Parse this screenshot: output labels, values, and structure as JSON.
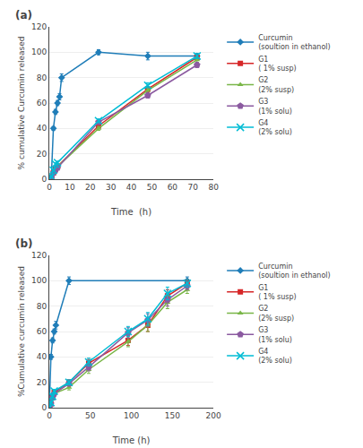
{
  "chart_data": [
    {
      "type": "line",
      "title": "(a)",
      "x_label": "Time  (h)",
      "y_label": "% cumulative Curcumin released",
      "xlim": [
        0,
        80
      ],
      "ylim": [
        0,
        120
      ],
      "xticks": [
        0,
        10,
        20,
        30,
        40,
        50,
        60,
        70,
        80
      ],
      "yticks": [
        0,
        20,
        40,
        60,
        80,
        100,
        120
      ],
      "grid": "y",
      "legend": "right",
      "series": [
        {
          "name": "Curcumin\n(soultion in ethanol)",
          "color": "#1f7db8",
          "marker": "diamond",
          "x": [
            0,
            1,
            2,
            3,
            4,
            5,
            6,
            24,
            48,
            72
          ],
          "values": [
            0,
            2,
            40,
            53,
            60,
            65,
            80,
            100,
            97,
            97
          ],
          "yerr": [
            0,
            0.5,
            1.5,
            2,
            2,
            2.5,
            3,
            2,
            3,
            2
          ]
        },
        {
          "name": "G1\n( 1% susp)",
          "color": "#d62728",
          "marker": "square",
          "x": [
            0,
            1,
            2,
            3,
            4,
            24,
            48,
            72
          ],
          "values": [
            0,
            1,
            5,
            8,
            10,
            42,
            71,
            96
          ],
          "yerr": [
            0,
            0.3,
            0.5,
            0.8,
            1.0,
            1.5,
            2,
            2
          ]
        },
        {
          "name": "G2\n(2% susp)",
          "color": "#7ab648",
          "marker": "triangle",
          "x": [
            0,
            1,
            2,
            3,
            4,
            24,
            48,
            72
          ],
          "values": [
            0,
            1,
            5,
            8,
            10,
            40,
            70,
            94
          ],
          "yerr": [
            0,
            0.3,
            0.5,
            0.8,
            1.0,
            1.5,
            2,
            2
          ]
        },
        {
          "name": "G3\n(1% solu)",
          "color": "#8b5aa0",
          "marker": "pentagon",
          "x": [
            0,
            1,
            2,
            3,
            4,
            24,
            48,
            72
          ],
          "values": [
            0,
            1,
            5,
            7,
            9,
            45,
            66,
            90
          ],
          "yerr": [
            0,
            0.3,
            0.5,
            0.8,
            1.0,
            1.5,
            2,
            2
          ]
        },
        {
          "name": "G4\n(2% solu)",
          "color": "#00bcd4",
          "marker": "x",
          "x": [
            0,
            1,
            2,
            3,
            4,
            24,
            48,
            72
          ],
          "values": [
            0,
            2,
            7,
            12,
            13,
            46,
            74,
            97
          ],
          "yerr": [
            0,
            0.3,
            0.5,
            1.0,
            1.2,
            1.5,
            2,
            2
          ]
        }
      ]
    },
    {
      "type": "line",
      "title": "(b)",
      "x_label": "Time (h)",
      "y_label": "%Cumulative curcumin released",
      "xlim": [
        0,
        200
      ],
      "ylim": [
        0,
        120
      ],
      "xticks": [
        0,
        50,
        100,
        150,
        200
      ],
      "yticks": [
        0,
        20,
        40,
        60,
        80,
        100,
        120
      ],
      "grid": "y",
      "legend": "right",
      "series": [
        {
          "name": "Curcumin\n(soultion in ethanol)",
          "color": "#1f7db8",
          "marker": "diamond",
          "x": [
            0,
            2,
            4,
            6,
            8,
            24,
            168
          ],
          "values": [
            0,
            40,
            53,
            60,
            65,
            100,
            100
          ],
          "yerr": [
            0,
            2,
            2,
            2,
            3,
            3,
            3
          ]
        },
        {
          "name": "G1\n( 1% susp)",
          "color": "#d62728",
          "marker": "square",
          "x": [
            0,
            2,
            4,
            6,
            24,
            48,
            96,
            120,
            144,
            168
          ],
          "values": [
            0,
            3,
            8,
            12,
            20,
            35,
            53,
            65,
            88,
            98
          ],
          "yerr": [
            0,
            0.5,
            1,
            1.5,
            2,
            3,
            4,
            5,
            5,
            3
          ]
        },
        {
          "name": "G2\n(2% susp)",
          "color": "#7ab648",
          "marker": "triangle",
          "x": [
            0,
            2,
            4,
            6,
            24,
            48,
            96,
            120,
            144,
            168
          ],
          "values": [
            0,
            3,
            8,
            11,
            16,
            30,
            52,
            65,
            83,
            93
          ],
          "yerr": [
            0,
            0.5,
            1,
            1.5,
            2,
            3,
            4,
            5,
            5,
            3
          ]
        },
        {
          "name": "G3\n(1% solu)",
          "color": "#8b5aa0",
          "marker": "pentagon",
          "x": [
            0,
            2,
            4,
            6,
            24,
            48,
            96,
            120,
            144,
            168
          ],
          "values": [
            0,
            3,
            8,
            11,
            19,
            32,
            59,
            69,
            85,
            96
          ],
          "yerr": [
            0,
            0.5,
            1,
            1.5,
            2,
            3,
            4,
            5,
            5,
            3
          ]
        },
        {
          "name": "G4\n(2% solu)",
          "color": "#00bcd4",
          "marker": "x",
          "x": [
            0,
            2,
            4,
            6,
            24,
            48,
            96,
            120,
            144,
            168
          ],
          "values": [
            0,
            4,
            9,
            13,
            20,
            36,
            60,
            70,
            90,
            98
          ],
          "yerr": [
            0,
            0.5,
            1,
            1.5,
            2,
            3,
            4,
            5,
            5,
            3
          ]
        }
      ]
    }
  ]
}
